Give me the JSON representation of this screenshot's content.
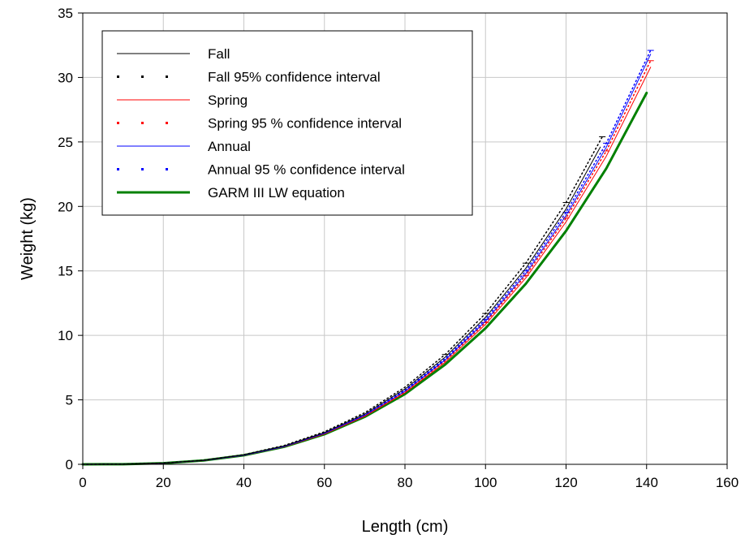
{
  "chart_data": {
    "type": "line",
    "title": "",
    "xlabel": "Length (cm)",
    "ylabel": "Weight (kg)",
    "xlim": [
      0,
      160
    ],
    "ylim": [
      0,
      35
    ],
    "xticks": [
      0,
      20,
      40,
      60,
      80,
      100,
      120,
      140,
      160
    ],
    "yticks": [
      0,
      5,
      10,
      15,
      20,
      25,
      30,
      35
    ],
    "grid": true,
    "legend_position": "top-left",
    "series": [
      {
        "name": "Fall",
        "color": "#000000",
        "style": "solid",
        "width": 1,
        "x": [
          0,
          10,
          20,
          30,
          40,
          50,
          60,
          70,
          80,
          90,
          100,
          110,
          120,
          128.5
        ],
        "y": [
          0,
          0.01,
          0.09,
          0.31,
          0.73,
          1.42,
          2.46,
          3.9,
          5.84,
          8.32,
          11.4,
          15.2,
          19.8,
          24.6
        ]
      },
      {
        "name": "Fall 95% confidence interval",
        "color": "#000000",
        "style": "dotted",
        "width": 1,
        "x": [
          0,
          10,
          20,
          30,
          40,
          50,
          60,
          70,
          80,
          90,
          100,
          110,
          120,
          129
        ],
        "y": [
          0,
          0.01,
          0.09,
          0.32,
          0.75,
          1.46,
          2.52,
          4.0,
          5.98,
          8.52,
          11.7,
          15.6,
          20.3,
          25.4
        ]
      },
      {
        "name": "Spring",
        "color": "#ff0000",
        "style": "solid",
        "width": 1,
        "x": [
          0,
          10,
          20,
          30,
          40,
          50,
          60,
          70,
          80,
          90,
          100,
          110,
          120,
          130,
          141
        ],
        "y": [
          0,
          0.01,
          0.09,
          0.3,
          0.7,
          1.36,
          2.35,
          3.72,
          5.55,
          7.92,
          10.85,
          14.45,
          18.8,
          23.9,
          30.8
        ]
      },
      {
        "name": "Spring 95 % confidence interval",
        "color": "#ff0000",
        "style": "dotted",
        "width": 1,
        "x": [
          0,
          10,
          20,
          30,
          40,
          50,
          60,
          70,
          80,
          90,
          100,
          110,
          120,
          130,
          141
        ],
        "y": [
          0,
          0.01,
          0.09,
          0.3,
          0.71,
          1.38,
          2.38,
          3.78,
          5.64,
          8.04,
          11.0,
          14.65,
          19.1,
          24.3,
          31.3
        ]
      },
      {
        "name": "Annual",
        "color": "#0000ff",
        "style": "solid",
        "width": 1,
        "x": [
          0,
          10,
          20,
          30,
          40,
          50,
          60,
          70,
          80,
          90,
          100,
          110,
          120,
          130,
          141
        ],
        "y": [
          0,
          0.01,
          0.09,
          0.3,
          0.71,
          1.38,
          2.4,
          3.8,
          5.67,
          8.1,
          11.1,
          14.8,
          19.3,
          24.6,
          31.8
        ]
      },
      {
        "name": "Annual 95 % confidence interval",
        "color": "#0000ff",
        "style": "dotted",
        "width": 1,
        "x": [
          0,
          10,
          20,
          30,
          40,
          50,
          60,
          70,
          80,
          90,
          100,
          110,
          120,
          130,
          141
        ],
        "y": [
          0,
          0.01,
          0.09,
          0.31,
          0.72,
          1.4,
          2.43,
          3.85,
          5.75,
          8.2,
          11.25,
          15.0,
          19.55,
          24.9,
          32.1
        ]
      },
      {
        "name": "GARM III LW equation",
        "color": "#008000",
        "style": "solid",
        "width": 3,
        "x": [
          0,
          10,
          20,
          30,
          40,
          50,
          60,
          70,
          80,
          90,
          100,
          110,
          120,
          130,
          140
        ],
        "y": [
          0,
          0.01,
          0.09,
          0.3,
          0.7,
          1.36,
          2.33,
          3.68,
          5.45,
          7.74,
          10.55,
          14.0,
          18.1,
          22.95,
          28.8
        ]
      }
    ]
  }
}
